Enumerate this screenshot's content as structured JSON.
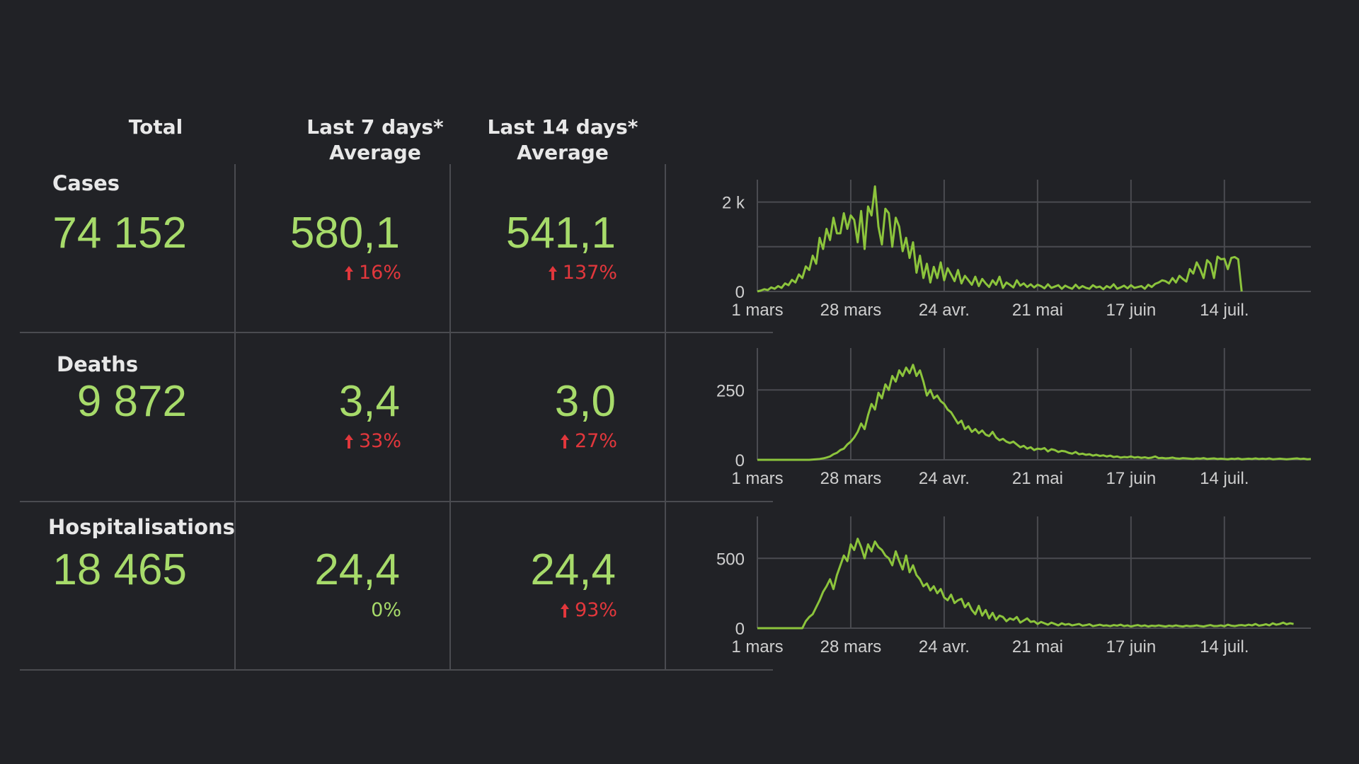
{
  "headers": {
    "total": "Total",
    "last7_line1": "Last 7 days*",
    "last7_line2": "Average",
    "last14_line1": "Last 14 days*",
    "last14_line2": "Average"
  },
  "colors": {
    "value": "#a7db6a",
    "up": "#e2373c",
    "line": "#8cc43c",
    "grid": "#4a4b50"
  },
  "rows": [
    {
      "label": "Cases",
      "total": "74 152",
      "avg7": "580,1",
      "avg7_change": "16%",
      "avg7_dir": "up",
      "avg14": "541,1",
      "avg14_change": "137%",
      "avg14_dir": "up"
    },
    {
      "label": "Deaths",
      "total": "9 872",
      "avg7": "3,4",
      "avg7_change": "33%",
      "avg7_dir": "up",
      "avg14": "3,0",
      "avg14_change": "27%",
      "avg14_dir": "up"
    },
    {
      "label": "Hospitalisations",
      "total": "18 465",
      "avg7": "24,4",
      "avg7_change": "0%",
      "avg7_dir": "neutral",
      "avg14": "24,4",
      "avg14_change": "93%",
      "avg14_dir": "up"
    }
  ],
  "chart_data": [
    {
      "type": "line",
      "title": "Cases",
      "xlabel": "",
      "ylabel": "",
      "x_ticks": [
        "1 mars",
        "28 mars",
        "24 avr.",
        "21 mai",
        "17 juin",
        "14 juil."
      ],
      "x_tick_days": [
        0,
        27,
        54,
        81,
        108,
        135
      ],
      "x_range": [
        0,
        160
      ],
      "y_ticks": [
        0,
        1000,
        2000
      ],
      "y_tick_labels": [
        "0",
        "",
        "2 k"
      ],
      "ylim": [
        0,
        2500
      ],
      "series": [
        {
          "name": "Cases",
          "values": [
            0,
            20,
            50,
            30,
            90,
            60,
            120,
            80,
            180,
            140,
            260,
            200,
            380,
            300,
            560,
            480,
            800,
            620,
            1200,
            950,
            1400,
            1150,
            1650,
            1300,
            1300,
            1750,
            1400,
            1700,
            1600,
            1100,
            1800,
            950,
            1900,
            1700,
            2350,
            1450,
            1050,
            1850,
            1750,
            1000,
            1650,
            1450,
            900,
            1200,
            750,
            1100,
            420,
            800,
            300,
            620,
            200,
            550,
            300,
            650,
            250,
            520,
            380,
            230,
            480,
            180,
            350,
            250,
            150,
            330,
            120,
            280,
            180,
            100,
            250,
            150,
            330,
            80,
            200,
            150,
            90,
            250,
            130,
            180,
            100,
            160,
            90,
            150,
            120,
            70,
            160,
            80,
            110,
            140,
            60,
            130,
            90,
            60,
            150,
            70,
            120,
            80,
            60,
            140,
            90,
            110,
            50,
            120,
            80,
            160,
            60,
            90,
            130,
            70,
            140,
            80,
            100,
            120,
            60,
            150,
            100,
            170,
            200,
            250,
            230,
            180,
            300,
            200,
            350,
            280,
            220,
            500,
            400,
            650,
            500,
            300,
            700,
            620,
            300,
            780,
            720,
            730,
            500,
            750,
            770,
            720,
            0
          ]
        }
      ]
    },
    {
      "type": "line",
      "title": "Deaths",
      "xlabel": "",
      "ylabel": "",
      "x_ticks": [
        "1 mars",
        "28 mars",
        "24 avr.",
        "21 mai",
        "17 juin",
        "14 juil."
      ],
      "x_tick_days": [
        0,
        27,
        54,
        81,
        108,
        135
      ],
      "x_range": [
        0,
        160
      ],
      "y_ticks": [
        0,
        250
      ],
      "y_tick_labels": [
        "0",
        "250"
      ],
      "ylim": [
        0,
        400
      ],
      "series": [
        {
          "name": "Deaths",
          "values": [
            0,
            0,
            0,
            0,
            0,
            0,
            0,
            0,
            0,
            0,
            0,
            0,
            0,
            0,
            0,
            0,
            1,
            2,
            3,
            5,
            8,
            12,
            20,
            25,
            35,
            40,
            55,
            65,
            80,
            100,
            130,
            110,
            160,
            200,
            180,
            240,
            220,
            270,
            250,
            300,
            280,
            320,
            300,
            330,
            310,
            340,
            300,
            320,
            280,
            230,
            250,
            220,
            230,
            210,
            200,
            180,
            170,
            150,
            130,
            140,
            110,
            120,
            100,
            110,
            95,
            105,
            90,
            85,
            100,
            80,
            70,
            75,
            65,
            60,
            65,
            55,
            45,
            50,
            40,
            45,
            35,
            40,
            38,
            42,
            30,
            38,
            35,
            28,
            32,
            30,
            25,
            22,
            28,
            20,
            22,
            18,
            20,
            15,
            18,
            14,
            16,
            12,
            15,
            10,
            12,
            8,
            10,
            9,
            12,
            8,
            10,
            7,
            9,
            6,
            8,
            12,
            6,
            7,
            5,
            6,
            8,
            5,
            4,
            6,
            5,
            4,
            3,
            5,
            4,
            6,
            3,
            4,
            5,
            3,
            4,
            3,
            2,
            4,
            3,
            5,
            2,
            3,
            4,
            3,
            5,
            3,
            4,
            3,
            5,
            2,
            3,
            4,
            3,
            2,
            3,
            4,
            5,
            3,
            4,
            2,
            3
          ]
        }
      ]
    },
    {
      "type": "line",
      "title": "Hospitalisations",
      "xlabel": "",
      "ylabel": "",
      "x_ticks": [
        "1 mars",
        "28 mars",
        "24 avr.",
        "21 mai",
        "17 juin",
        "14 juil."
      ],
      "x_tick_days": [
        0,
        27,
        54,
        81,
        108,
        135
      ],
      "x_range": [
        0,
        160
      ],
      "y_ticks": [
        0,
        500
      ],
      "y_tick_labels": [
        "0",
        "500"
      ],
      "ylim": [
        0,
        800
      ],
      "series": [
        {
          "name": "Hospitalisations",
          "values": [
            0,
            0,
            0,
            0,
            0,
            0,
            0,
            0,
            0,
            0,
            0,
            0,
            0,
            0,
            50,
            80,
            100,
            150,
            200,
            260,
            300,
            350,
            280,
            380,
            450,
            520,
            480,
            600,
            560,
            640,
            580,
            500,
            600,
            550,
            620,
            580,
            560,
            520,
            500,
            450,
            550,
            480,
            420,
            520,
            400,
            450,
            380,
            350,
            300,
            320,
            270,
            300,
            250,
            280,
            220,
            200,
            240,
            180,
            200,
            210,
            150,
            180,
            130,
            100,
            160,
            90,
            130,
            70,
            110,
            60,
            90,
            80,
            50,
            70,
            60,
            80,
            40,
            55,
            70,
            45,
            50,
            30,
            45,
            35,
            25,
            40,
            30,
            20,
            35,
            25,
            30,
            20,
            25,
            30,
            18,
            22,
            28,
            15,
            20,
            25,
            18,
            20,
            15,
            22,
            18,
            25,
            15,
            20,
            12,
            18,
            22,
            15,
            20,
            12,
            18,
            15,
            20,
            16,
            12,
            18,
            14,
            20,
            15,
            12,
            18,
            14,
            16,
            20,
            15,
            12,
            18,
            22,
            15,
            16,
            20,
            14,
            25,
            18,
            15,
            20,
            22,
            18,
            25,
            20,
            30,
            18,
            22,
            28,
            20,
            35,
            25,
            30,
            40,
            28,
            35,
            30
          ]
        }
      ]
    }
  ]
}
